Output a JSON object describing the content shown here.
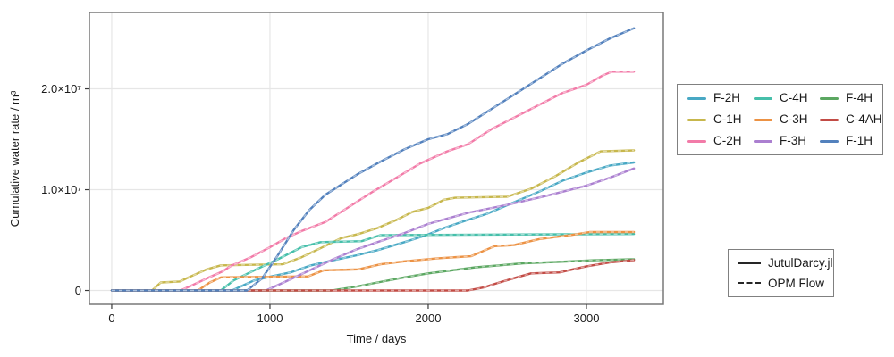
{
  "chart_data": {
    "type": "line",
    "title": "",
    "xlabel": "Time / days",
    "ylabel": "Cumulative water rate / m³",
    "xlim": [
      -141,
      3486
    ],
    "ylim": [
      -1370000,
      27570000
    ],
    "grid": true,
    "legend_position": "right",
    "x_ticks": [
      {
        "value": 0,
        "label": "0"
      },
      {
        "value": 1000,
        "label": "1000"
      },
      {
        "value": 2000,
        "label": "2000"
      },
      {
        "value": 3000,
        "label": "3000"
      }
    ],
    "y_ticks": [
      {
        "value": 0,
        "label": "0"
      },
      {
        "value": 10000000,
        "label": "1.0×10⁷"
      },
      {
        "value": 20000000,
        "label": "2.0×10⁷"
      }
    ],
    "colors": {
      "grid": "#e6e6e6",
      "spine": "#787878",
      "tick": "#3a3a3a",
      "text": "#1a1a1a",
      "opm_dash_overlay": "rgba(255,255,255,0.5)"
    },
    "series": [
      {
        "name": "F-2H",
        "color": "#48a8c4",
        "points": [
          [
            0,
            0
          ],
          [
            760,
            0
          ],
          [
            900,
            1000000
          ],
          [
            1010,
            1400000
          ],
          [
            1130,
            1800000
          ],
          [
            1260,
            2500000
          ],
          [
            1400,
            3000000
          ],
          [
            1550,
            3500000
          ],
          [
            1680,
            4000000
          ],
          [
            1850,
            4800000
          ],
          [
            1990,
            5500000
          ],
          [
            2100,
            6200000
          ],
          [
            2230,
            6900000
          ],
          [
            2370,
            7600000
          ],
          [
            2550,
            8800000
          ],
          [
            2700,
            9800000
          ],
          [
            2850,
            10900000
          ],
          [
            3000,
            11700000
          ],
          [
            3150,
            12400000
          ],
          [
            3300,
            12700000
          ]
        ]
      },
      {
        "name": "C-1H",
        "color": "#c7b74c",
        "points": [
          [
            0,
            0
          ],
          [
            255,
            0
          ],
          [
            310,
            800000
          ],
          [
            430,
            900000
          ],
          [
            500,
            1400000
          ],
          [
            600,
            2100000
          ],
          [
            690,
            2500000
          ],
          [
            1080,
            2600000
          ],
          [
            1200,
            3300000
          ],
          [
            1320,
            4200000
          ],
          [
            1450,
            5200000
          ],
          [
            1560,
            5600000
          ],
          [
            1680,
            6200000
          ],
          [
            1800,
            7000000
          ],
          [
            1900,
            7800000
          ],
          [
            2000,
            8200000
          ],
          [
            2100,
            9000000
          ],
          [
            2170,
            9200000
          ],
          [
            2500,
            9300000
          ],
          [
            2650,
            10100000
          ],
          [
            2800,
            11300000
          ],
          [
            2950,
            12700000
          ],
          [
            3090,
            13800000
          ],
          [
            3300,
            13900000
          ]
        ]
      },
      {
        "name": "C-2H",
        "color": "#f27ba8",
        "points": [
          [
            0,
            0
          ],
          [
            435,
            0
          ],
          [
            520,
            600000
          ],
          [
            600,
            1200000
          ],
          [
            700,
            1900000
          ],
          [
            760,
            2500000
          ],
          [
            880,
            3300000
          ],
          [
            1000,
            4300000
          ],
          [
            1100,
            5200000
          ],
          [
            1200,
            5900000
          ],
          [
            1350,
            6800000
          ],
          [
            1500,
            8300000
          ],
          [
            1650,
            9800000
          ],
          [
            1800,
            11200000
          ],
          [
            1950,
            12600000
          ],
          [
            2120,
            13800000
          ],
          [
            2250,
            14500000
          ],
          [
            2400,
            16000000
          ],
          [
            2550,
            17200000
          ],
          [
            2700,
            18400000
          ],
          [
            2850,
            19600000
          ],
          [
            3000,
            20400000
          ],
          [
            3100,
            21300000
          ],
          [
            3160,
            21700000
          ],
          [
            3300,
            21700000
          ]
        ]
      },
      {
        "name": "C-4H",
        "color": "#46bfaa",
        "points": [
          [
            0,
            0
          ],
          [
            690,
            0
          ],
          [
            770,
            1000000
          ],
          [
            900,
            2000000
          ],
          [
            1050,
            3100000
          ],
          [
            1200,
            4300000
          ],
          [
            1320,
            4800000
          ],
          [
            1580,
            4900000
          ],
          [
            1700,
            5500000
          ],
          [
            3300,
            5600000
          ]
        ]
      },
      {
        "name": "C-3H",
        "color": "#ec9244",
        "points": [
          [
            0,
            0
          ],
          [
            545,
            0
          ],
          [
            620,
            800000
          ],
          [
            690,
            1300000
          ],
          [
            1240,
            1400000
          ],
          [
            1340,
            2000000
          ],
          [
            1560,
            2100000
          ],
          [
            1700,
            2600000
          ],
          [
            1850,
            2900000
          ],
          [
            2060,
            3200000
          ],
          [
            2270,
            3400000
          ],
          [
            2420,
            4400000
          ],
          [
            2540,
            4500000
          ],
          [
            2700,
            5100000
          ],
          [
            2900,
            5500000
          ],
          [
            3020,
            5800000
          ],
          [
            3300,
            5800000
          ]
        ]
      },
      {
        "name": "F-3H",
        "color": "#ab7fd0",
        "points": [
          [
            0,
            0
          ],
          [
            975,
            0
          ],
          [
            1100,
            900000
          ],
          [
            1250,
            2000000
          ],
          [
            1400,
            3100000
          ],
          [
            1550,
            4100000
          ],
          [
            1680,
            4800000
          ],
          [
            1850,
            5700000
          ],
          [
            2000,
            6600000
          ],
          [
            2250,
            7700000
          ],
          [
            2500,
            8500000
          ],
          [
            2750,
            9400000
          ],
          [
            3000,
            10400000
          ],
          [
            3150,
            11200000
          ],
          [
            3300,
            12100000
          ]
        ]
      },
      {
        "name": "F-4H",
        "color": "#5ba761",
        "points": [
          [
            0,
            0
          ],
          [
            1390,
            0
          ],
          [
            1550,
            400000
          ],
          [
            1680,
            800000
          ],
          [
            1850,
            1300000
          ],
          [
            2000,
            1700000
          ],
          [
            2150,
            2000000
          ],
          [
            2300,
            2300000
          ],
          [
            2450,
            2500000
          ],
          [
            2600,
            2700000
          ],
          [
            2750,
            2800000
          ],
          [
            2900,
            2900000
          ],
          [
            3050,
            3000000
          ],
          [
            3300,
            3100000
          ]
        ]
      },
      {
        "name": "C-4AH",
        "color": "#c24b45",
        "points": [
          [
            0,
            0
          ],
          [
            2250,
            0
          ],
          [
            2350,
            300000
          ],
          [
            2450,
            800000
          ],
          [
            2560,
            1300000
          ],
          [
            2650,
            1700000
          ],
          [
            2830,
            1800000
          ],
          [
            3000,
            2400000
          ],
          [
            3150,
            2800000
          ],
          [
            3300,
            3000000
          ]
        ]
      },
      {
        "name": "F-1H",
        "color": "#5381bd",
        "points": [
          [
            0,
            0
          ],
          [
            855,
            0
          ],
          [
            950,
            1200000
          ],
          [
            1050,
            3500000
          ],
          [
            1150,
            6000000
          ],
          [
            1250,
            8000000
          ],
          [
            1350,
            9500000
          ],
          [
            1450,
            10500000
          ],
          [
            1550,
            11500000
          ],
          [
            1700,
            12800000
          ],
          [
            1850,
            14000000
          ],
          [
            2000,
            15000000
          ],
          [
            2120,
            15500000
          ],
          [
            2250,
            16500000
          ],
          [
            2400,
            18000000
          ],
          [
            2550,
            19500000
          ],
          [
            2700,
            21000000
          ],
          [
            2850,
            22500000
          ],
          [
            3000,
            23800000
          ],
          [
            3150,
            25000000
          ],
          [
            3300,
            26000000
          ]
        ]
      }
    ]
  },
  "legend_wells": {
    "display_order": [
      "F-2H",
      "C-4H",
      "F-4H",
      "C-1H",
      "C-3H",
      "C-4AH",
      "C-2H",
      "F-3H",
      "F-1H"
    ]
  },
  "legend_models": {
    "items": [
      {
        "label": "JutulDarcy.jl",
        "style": "solid"
      },
      {
        "label": "OPM Flow",
        "style": "dashed"
      }
    ]
  }
}
